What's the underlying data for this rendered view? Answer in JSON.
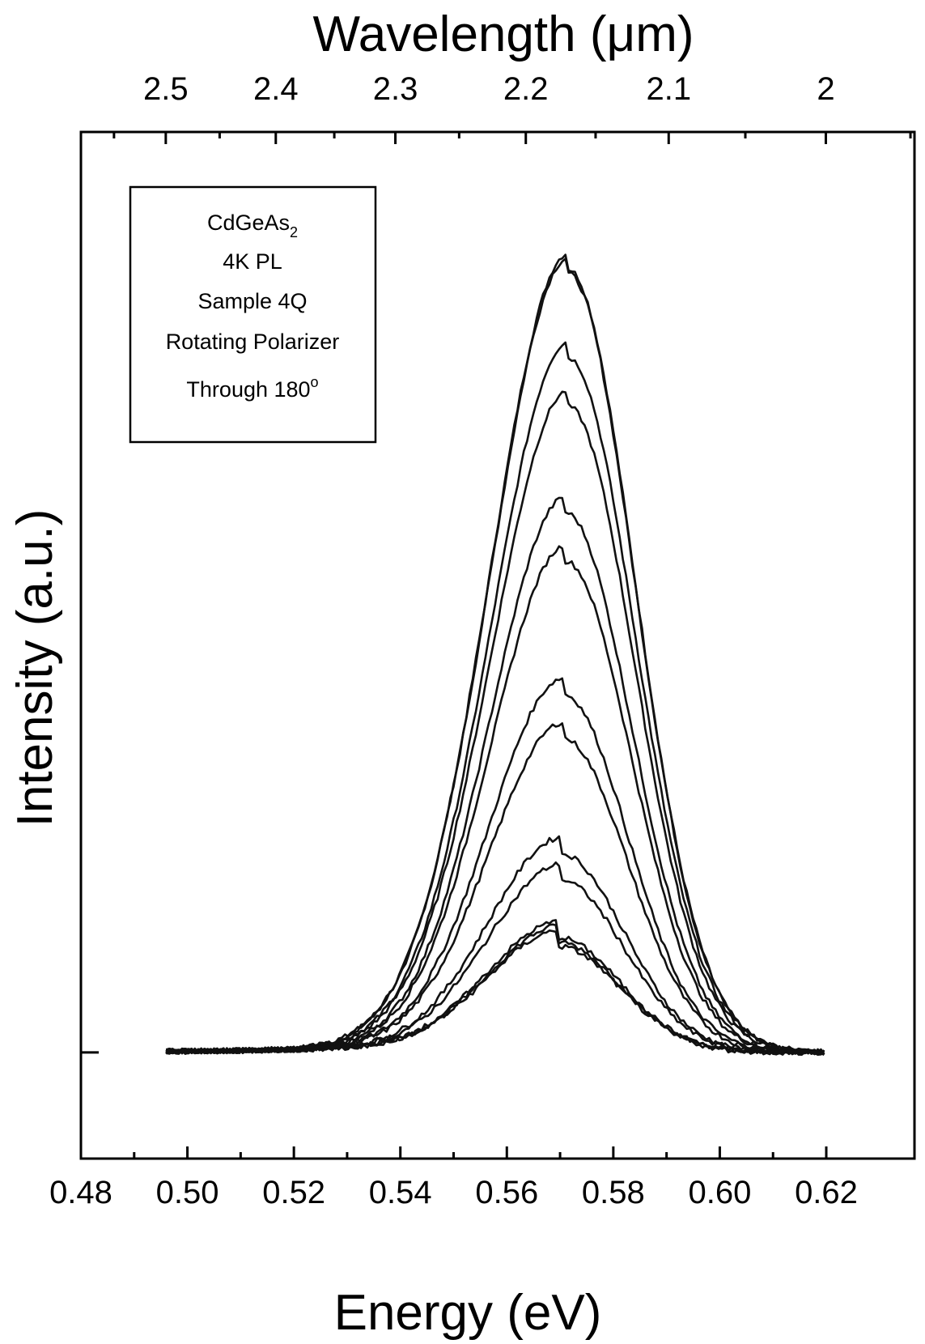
{
  "chart_data": {
    "type": "line",
    "top_axis": {
      "label": "Wavelength (μm)",
      "ticks": [
        2.5,
        2.4,
        2.3,
        2.2,
        2.1,
        2
      ],
      "tick_labels": [
        "2.5",
        "2.4",
        "2.3",
        "2.2",
        "2.1",
        "2"
      ]
    },
    "x_axis": {
      "label": "Energy (eV)",
      "range": [
        0.48,
        0.62
      ],
      "ticks": [
        0.48,
        0.5,
        0.52,
        0.54,
        0.56,
        0.58,
        0.6,
        0.62
      ],
      "tick_labels": [
        "0.48",
        "0.50",
        "0.52",
        "0.54",
        "0.56",
        "0.58",
        "0.60",
        "0.62"
      ]
    },
    "y_axis": {
      "label": "Intensity (a.u.)",
      "range": [
        -0.12,
        1.04
      ],
      "zero_tick": 0
    },
    "legend_box": {
      "lines": [
        "CdGeAs",
        "4K PL",
        "Sample 4Q",
        "Rotating Polarizer",
        "Through 180"
      ],
      "subscript": "2",
      "superscript": "o"
    },
    "x_start": 0.496,
    "x_end": 0.62,
    "series": [
      {
        "peak_energy": 0.5715,
        "peak_intensity": 0.885,
        "width_left": 0.0145,
        "width_right": 0.0125
      },
      {
        "peak_energy": 0.5715,
        "peak_intensity": 0.88,
        "width_left": 0.0145,
        "width_right": 0.0125
      },
      {
        "peak_energy": 0.5715,
        "peak_intensity": 0.785,
        "width_left": 0.0143,
        "width_right": 0.0125
      },
      {
        "peak_energy": 0.5715,
        "peak_intensity": 0.73,
        "width_left": 0.0143,
        "width_right": 0.0124
      },
      {
        "peak_energy": 0.571,
        "peak_intensity": 0.61,
        "width_left": 0.014,
        "width_right": 0.0124
      },
      {
        "peak_energy": 0.571,
        "peak_intensity": 0.555,
        "width_left": 0.014,
        "width_right": 0.0123
      },
      {
        "peak_energy": 0.5705,
        "peak_intensity": 0.405,
        "width_left": 0.0138,
        "width_right": 0.0122
      },
      {
        "peak_energy": 0.5705,
        "peak_intensity": 0.355,
        "width_left": 0.0138,
        "width_right": 0.0122
      },
      {
        "peak_energy": 0.57,
        "peak_intensity": 0.225,
        "width_left": 0.0135,
        "width_right": 0.012
      },
      {
        "peak_energy": 0.57,
        "peak_intensity": 0.195,
        "width_left": 0.0135,
        "width_right": 0.012
      },
      {
        "peak_energy": 0.5695,
        "peak_intensity": 0.13,
        "width_left": 0.0132,
        "width_right": 0.0118
      },
      {
        "peak_energy": 0.5695,
        "peak_intensity": 0.125,
        "width_left": 0.0132,
        "width_right": 0.0118
      },
      {
        "peak_energy": 0.5695,
        "peak_intensity": 0.12,
        "width_left": 0.0132,
        "width_right": 0.0118
      }
    ]
  }
}
